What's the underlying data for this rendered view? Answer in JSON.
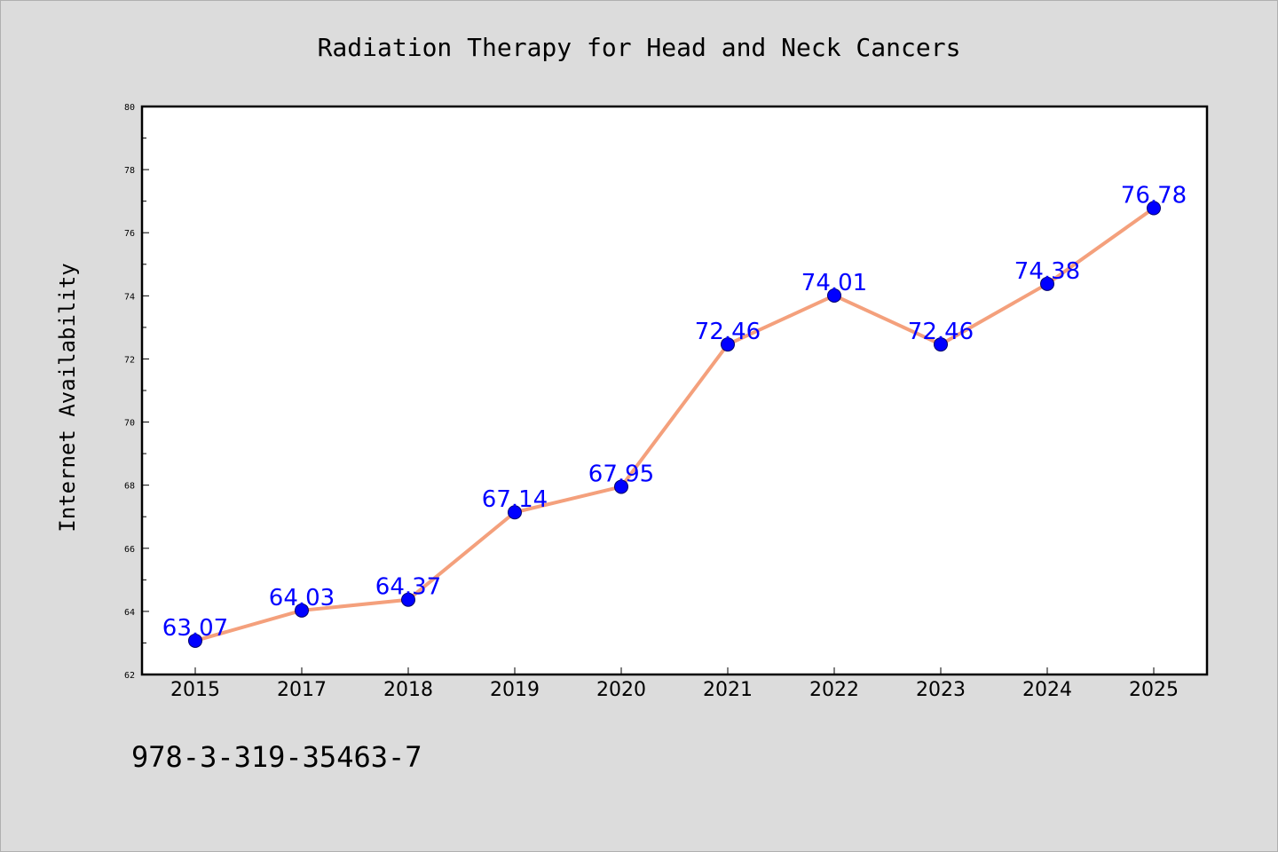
{
  "chart_data": {
    "type": "line",
    "title": "Radiation Therapy for Head and Neck Cancers",
    "xlabel": "",
    "ylabel": "Internet Availability",
    "categories": [
      "2015",
      "2017",
      "2018",
      "2019",
      "2020",
      "2021",
      "2022",
      "2023",
      "2024",
      "2025"
    ],
    "series": [
      {
        "values": [
          63.07,
          64.03,
          64.37,
          67.14,
          67.95,
          72.46,
          74.01,
          72.46,
          74.38,
          76.78
        ]
      }
    ],
    "data_labels": [
      "63.07",
      "64.03",
      "64.37",
      "67.14",
      "67.95",
      "72.46",
      "74.01",
      "72.46",
      "74.38",
      "76.78"
    ],
    "ylim": [
      62,
      80
    ],
    "yticks": [
      62,
      64,
      66,
      68,
      70,
      72,
      74,
      76,
      78,
      80
    ],
    "grid": false,
    "line_color": "#f4a07c",
    "marker_color": "#0000ff",
    "label_color": "#0000ff",
    "background_color": "#dcdcdc",
    "plot_background": "#ffffff"
  },
  "footer": {
    "isbn": "978-3-319-35463-7"
  }
}
